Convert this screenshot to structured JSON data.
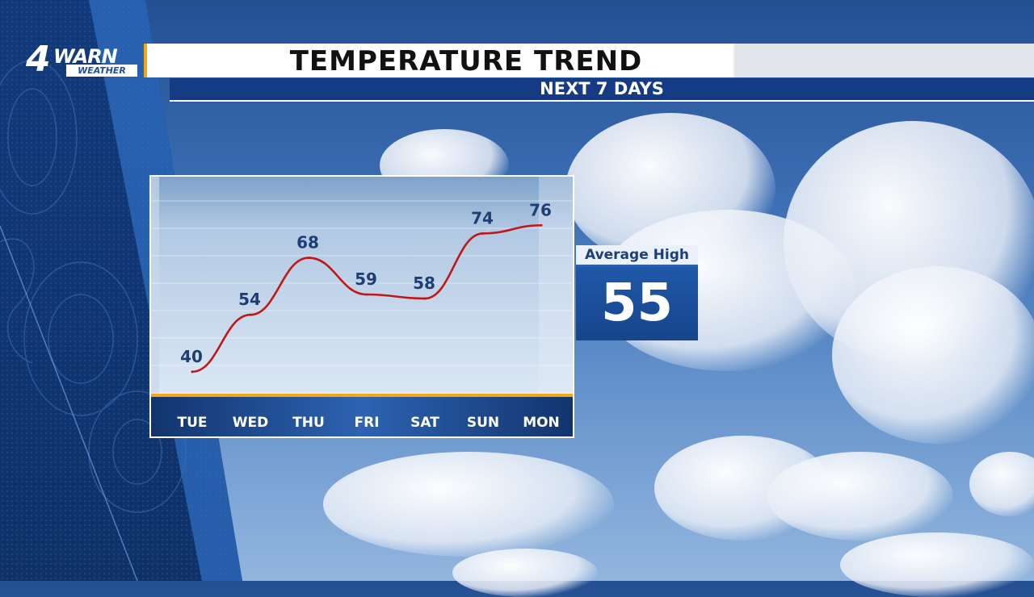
{
  "brand": {
    "number": "4",
    "name": "WARN",
    "tagline": "WEATHER"
  },
  "header": {
    "title": "TEMPERATURE TREND",
    "subtitle": "NEXT 7 DAYS"
  },
  "average_high": {
    "label": "Average High",
    "value": "55"
  },
  "colors": {
    "line": "#c01818",
    "label": "#1e3f73",
    "axis_rule": "#f0a81a",
    "accent_blue": "#1f58a8"
  },
  "chart_data": {
    "type": "line",
    "title": "TEMPERATURE TREND",
    "subtitle": "NEXT 7 DAYS",
    "categories": [
      "TUE",
      "WED",
      "THU",
      "FRI",
      "SAT",
      "SUN",
      "MON"
    ],
    "series": [
      {
        "values": [
          40,
          54,
          68,
          59,
          58,
          74,
          76
        ]
      }
    ],
    "data_labels": [
      "40",
      "54",
      "68",
      "59",
      "58",
      "74",
      "76"
    ],
    "ylim": [
      36,
      82
    ],
    "grid": true,
    "smooth": true
  }
}
